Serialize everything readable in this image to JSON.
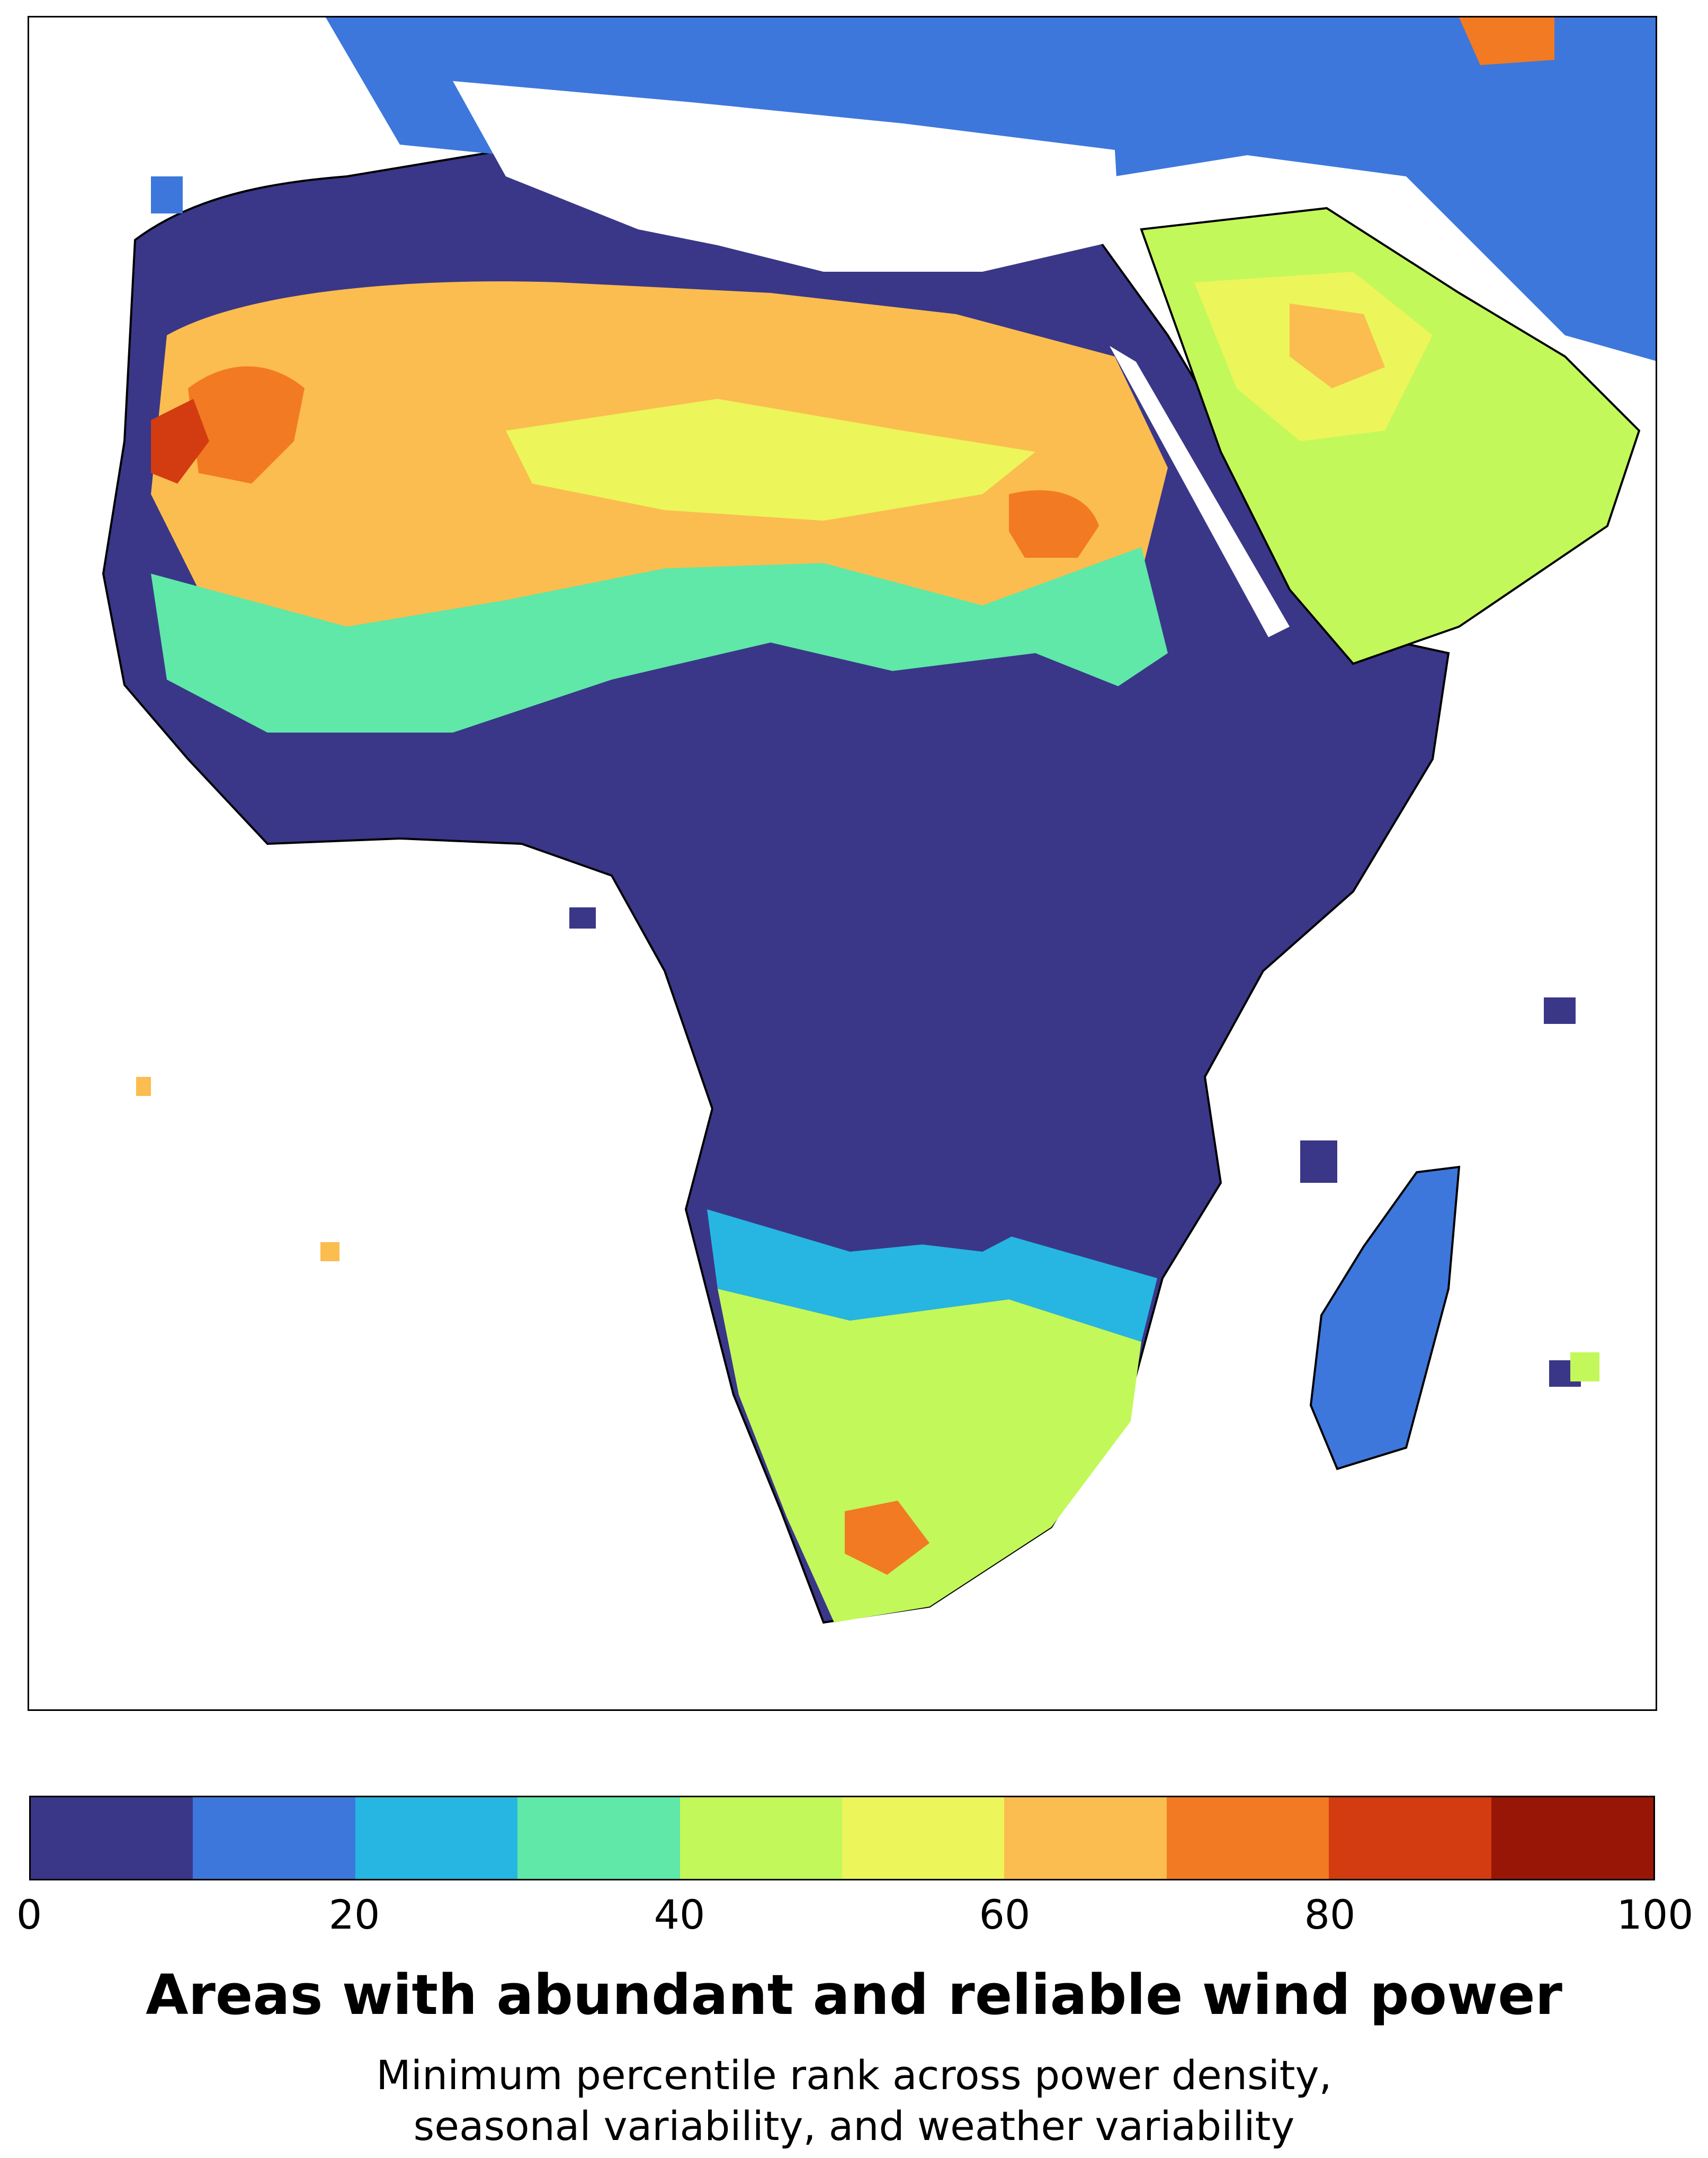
{
  "map": {
    "region": "Africa and the Middle East",
    "colors": [
      "#3a3788",
      "#3d77dc",
      "#27b6e1",
      "#5fe8a8",
      "#c2f85a",
      "#ecf55a",
      "#fbbd4f",
      "#f27a22",
      "#d33c10",
      "#981605"
    ],
    "land_border_color": "#000000"
  },
  "colorbar": {
    "min": 0,
    "max": 100,
    "step": 10,
    "ticks": [
      "0",
      "20",
      "40",
      "60",
      "80",
      "100"
    ]
  },
  "title": "Areas with abundant and reliable wind power",
  "subtitle_line1": "Minimum percentile rank across power density,",
  "subtitle_line2": "seasonal variability, and weather variability"
}
